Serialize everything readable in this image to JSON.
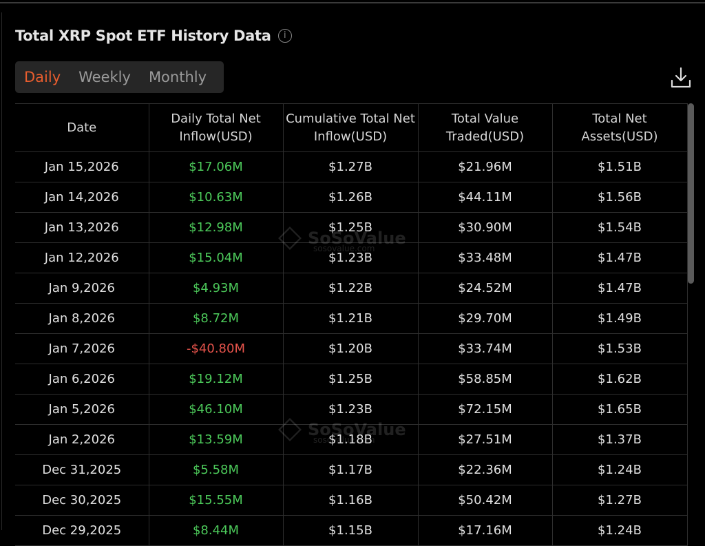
{
  "title": "Total XRP Spot ETF History Data",
  "tabs": [
    {
      "label": "Daily",
      "active": true
    },
    {
      "label": "Weekly",
      "active": false
    },
    {
      "label": "Monthly",
      "active": false
    }
  ],
  "colors": {
    "accent": "#e85d2e",
    "positive": "#4cc95a",
    "negative": "#e5534b"
  },
  "icons": {
    "info": "info-circle-icon",
    "download": "download-icon"
  },
  "watermark": {
    "brand": "SoSoValue",
    "url": "sosovalue.com"
  },
  "table": {
    "columns": [
      "Date",
      "Daily Total Net Inflow(USD)",
      "Cumulative Total Net Inflow(USD)",
      "Total Value Traded(USD)",
      "Total Net Assets(USD)"
    ],
    "rows": [
      [
        "Jan 15,2026",
        "$17.06M",
        "$1.27B",
        "$21.96M",
        "$1.51B"
      ],
      [
        "Jan 14,2026",
        "$10.63M",
        "$1.26B",
        "$44.11M",
        "$1.56B"
      ],
      [
        "Jan 13,2026",
        "$12.98M",
        "$1.25B",
        "$30.90M",
        "$1.54B"
      ],
      [
        "Jan 12,2026",
        "$15.04M",
        "$1.23B",
        "$33.48M",
        "$1.47B"
      ],
      [
        "Jan 9,2026",
        "$4.93M",
        "$1.22B",
        "$24.52M",
        "$1.47B"
      ],
      [
        "Jan 8,2026",
        "$8.72M",
        "$1.21B",
        "$29.70M",
        "$1.49B"
      ],
      [
        "Jan 7,2026",
        "-$40.80M",
        "$1.20B",
        "$33.74M",
        "$1.53B"
      ],
      [
        "Jan 6,2026",
        "$19.12M",
        "$1.25B",
        "$58.85M",
        "$1.62B"
      ],
      [
        "Jan 5,2026",
        "$46.10M",
        "$1.23B",
        "$72.15M",
        "$1.65B"
      ],
      [
        "Jan 2,2026",
        "$13.59M",
        "$1.18B",
        "$27.51M",
        "$1.37B"
      ],
      [
        "Dec 31,2025",
        "$5.58M",
        "$1.17B",
        "$22.36M",
        "$1.24B"
      ],
      [
        "Dec 30,2025",
        "$15.55M",
        "$1.16B",
        "$50.42M",
        "$1.27B"
      ],
      [
        "Dec 29,2025",
        "$8.44M",
        "$1.15B",
        "$17.16M",
        "$1.24B"
      ]
    ]
  }
}
